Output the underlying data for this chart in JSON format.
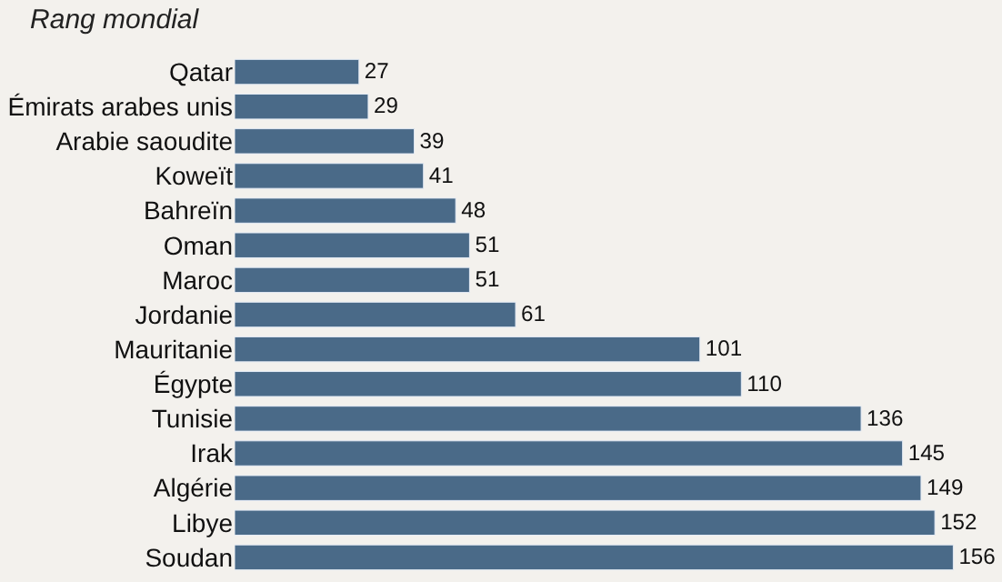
{
  "chart_data": {
    "type": "bar",
    "orientation": "horizontal",
    "title": "Rang mondial",
    "categories": [
      "Qatar",
      "Émirats arabes unis",
      "Arabie saoudite",
      "Koweït",
      "Bahreïn",
      "Oman",
      "Maroc",
      "Jordanie",
      "Mauritanie",
      "Égypte",
      "Tunisie",
      "Irak",
      "Algérie",
      "Libye",
      "Soudan"
    ],
    "values": [
      27,
      29,
      39,
      41,
      48,
      51,
      51,
      61,
      101,
      110,
      136,
      145,
      149,
      152,
      156
    ],
    "color": "#4a6a88",
    "data_labels": true,
    "tick_labels": "y"
  }
}
